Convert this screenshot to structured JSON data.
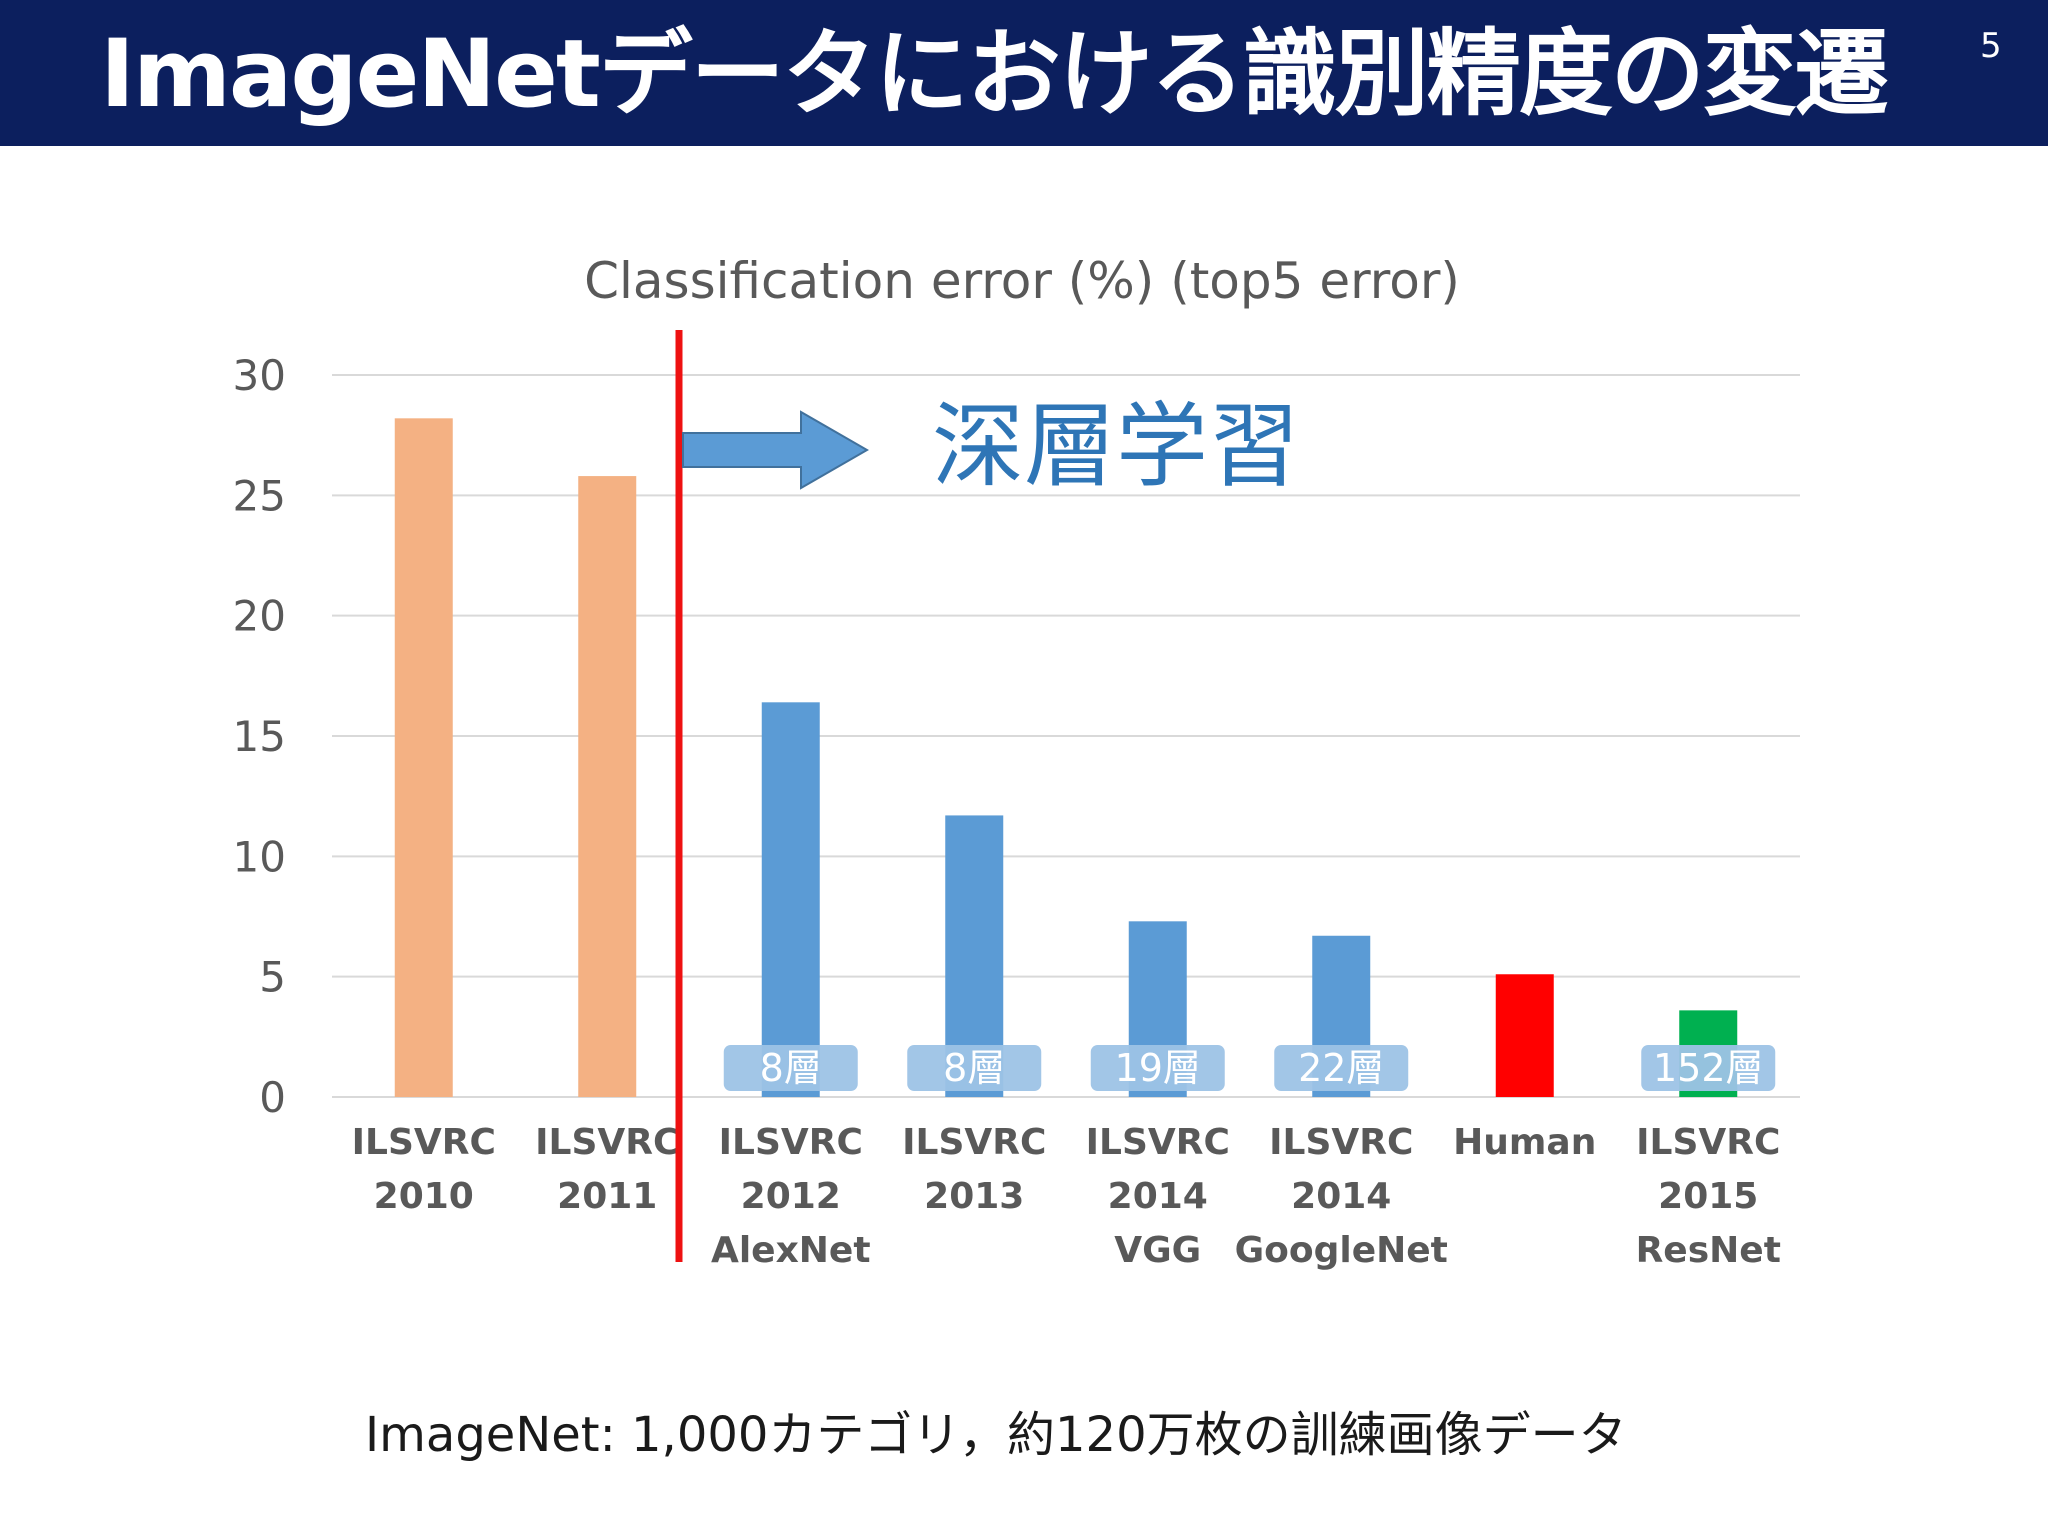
{
  "header": {
    "title": "ImageNetデータにおける識別精度の変遷",
    "page_number": "5"
  },
  "chart_data": {
    "type": "bar",
    "title": "Classification error (%) (top5 error)",
    "xlabel": "",
    "ylabel": "",
    "ylim": [
      0,
      30
    ],
    "yticks": [
      "0",
      "5",
      "10",
      "15",
      "20",
      "25",
      "30"
    ],
    "grid": true,
    "categories": [
      [
        "ILSVRC",
        "2010"
      ],
      [
        "ILSVRC",
        "2011"
      ],
      [
        "ILSVRC",
        "2012",
        "AlexNet"
      ],
      [
        "ILSVRC",
        "2013"
      ],
      [
        "ILSVRC",
        "2014",
        "VGG"
      ],
      [
        "ILSVRC",
        "2014",
        "GoogleNet"
      ],
      [
        "Human"
      ],
      [
        "ILSVRC",
        "2015",
        "ResNet"
      ]
    ],
    "values": [
      28.2,
      25.8,
      16.4,
      11.7,
      7.3,
      6.7,
      5.1,
      3.6
    ],
    "bar_colors": [
      "#f4b183",
      "#f4b183",
      "#5b9bd5",
      "#5b9bd5",
      "#5b9bd5",
      "#5b9bd5",
      "#ff0000",
      "#00b050"
    ],
    "layer_badges": [
      "",
      "",
      "8層",
      "8層",
      "19層",
      "22層",
      "",
      "152層"
    ],
    "annotation": {
      "label": "深層学習",
      "divider_color": "#ee1111",
      "arrow_color": "#5b9bd5"
    }
  },
  "footer": {
    "note": "ImageNet: 1,000カテゴリ，約120万枚の訓練画像データ"
  }
}
